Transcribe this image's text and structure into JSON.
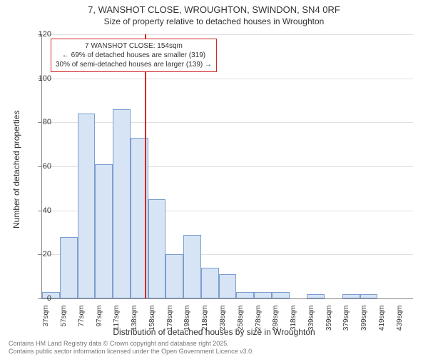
{
  "title_line1": "7, WANSHOT CLOSE, WROUGHTON, SWINDON, SN4 0RF",
  "title_line2": "Size of property relative to detached houses in Wroughton",
  "chart": {
    "type": "histogram",
    "y_axis_title": "Number of detached properties",
    "x_axis_title": "Distribution of detached houses by size in Wroughton",
    "ylim_max": 120,
    "ytick_step": 20,
    "yticks": [
      0,
      20,
      40,
      60,
      80,
      100,
      120
    ],
    "bar_fill": "#d6e4f5",
    "bar_border": "#7a9ecf",
    "grid_color": "#e0e0e0",
    "background_color": "#ffffff",
    "categories": [
      "37sqm",
      "57sqm",
      "77sqm",
      "97sqm",
      "117sqm",
      "138sqm",
      "158sqm",
      "178sqm",
      "198sqm",
      "218sqm",
      "238sqm",
      "258sqm",
      "278sqm",
      "298sqm",
      "318sqm",
      "339sqm",
      "359sqm",
      "379sqm",
      "399sqm",
      "419sqm",
      "439sqm"
    ],
    "values": [
      3,
      28,
      84,
      61,
      86,
      73,
      45,
      20,
      29,
      14,
      11,
      3,
      3,
      3,
      0,
      2,
      0,
      2,
      2,
      0,
      0
    ],
    "reference_line": {
      "color": "#d02828",
      "x_index_after": 6
    },
    "callout": {
      "border_color": "#d02828",
      "line1": "7 WANSHOT CLOSE: 154sqm",
      "line2": "← 69% of detached houses are smaller (319)",
      "line3": "30% of semi-detached houses are larger (139) →"
    }
  },
  "footer_line1": "Contains HM Land Registry data © Crown copyright and database right 2025.",
  "footer_line2": "Contains public sector information licensed under the Open Government Licence v3.0."
}
